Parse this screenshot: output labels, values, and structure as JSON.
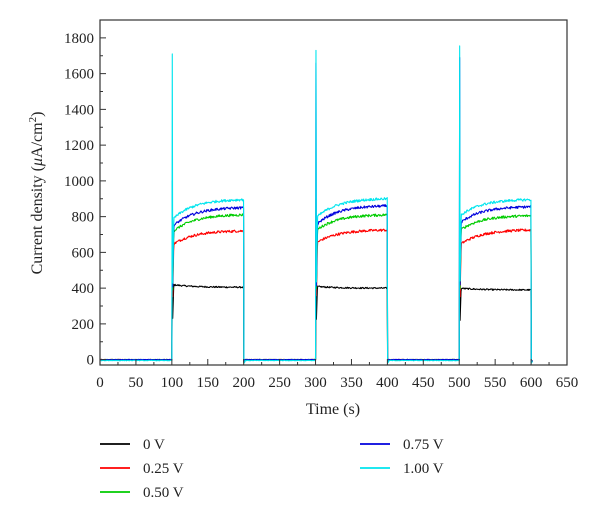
{
  "chart_data": {
    "type": "line",
    "xlabel": "Time (s)",
    "ylabel": {
      "prefix": "Current density (",
      "mu": "μ",
      "unit": "A/cm",
      "sup": "2",
      "suffix": ")"
    },
    "xlim": [
      0,
      650
    ],
    "ylim": [
      -30,
      1900
    ],
    "x_ticks": [
      0,
      50,
      100,
      150,
      200,
      250,
      300,
      350,
      400,
      450,
      500,
      550,
      600,
      650
    ],
    "y_ticks": [
      0,
      200,
      400,
      600,
      800,
      1000,
      1200,
      1400,
      1600,
      1800
    ],
    "grid": false,
    "legend_position": "bottom",
    "light_cycles": [
      {
        "on": 100,
        "off": 200
      },
      {
        "on": 300,
        "off": 400
      },
      {
        "on": 500,
        "off": 600
      }
    ],
    "series": [
      {
        "name": "0 V",
        "color": "#000000",
        "dark": 0,
        "peaks": [
          440,
          460,
          480
        ],
        "start": [
          420,
          410,
          400
        ],
        "end": [
          405,
          400,
          390
        ],
        "noise": 8
      },
      {
        "name": "0.25 V",
        "color": "#ff0000",
        "dark": 0,
        "peaks": [
          700,
          700,
          720
        ],
        "start": [
          640,
          650,
          640
        ],
        "end": [
          720,
          725,
          725
        ],
        "noise": 14
      },
      {
        "name": "0.50 V",
        "color": "#00cc00",
        "dark": 0,
        "peaks": [
          860,
          900,
          950
        ],
        "start": [
          710,
          720,
          720
        ],
        "end": [
          810,
          810,
          805
        ],
        "noise": 14
      },
      {
        "name": "0.75 V",
        "color": "#0000dd",
        "dark": 0,
        "peaks": [
          1000,
          1660,
          1690
        ],
        "start": [
          740,
          750,
          760
        ],
        "end": [
          850,
          860,
          855
        ],
        "noise": 14
      },
      {
        "name": "1.00 V",
        "color": "#00e5ee",
        "dark": -5,
        "peaks": [
          1710,
          1730,
          1755
        ],
        "start": [
          780,
          790,
          800
        ],
        "end": [
          895,
          900,
          895
        ],
        "noise": 14
      }
    ]
  }
}
